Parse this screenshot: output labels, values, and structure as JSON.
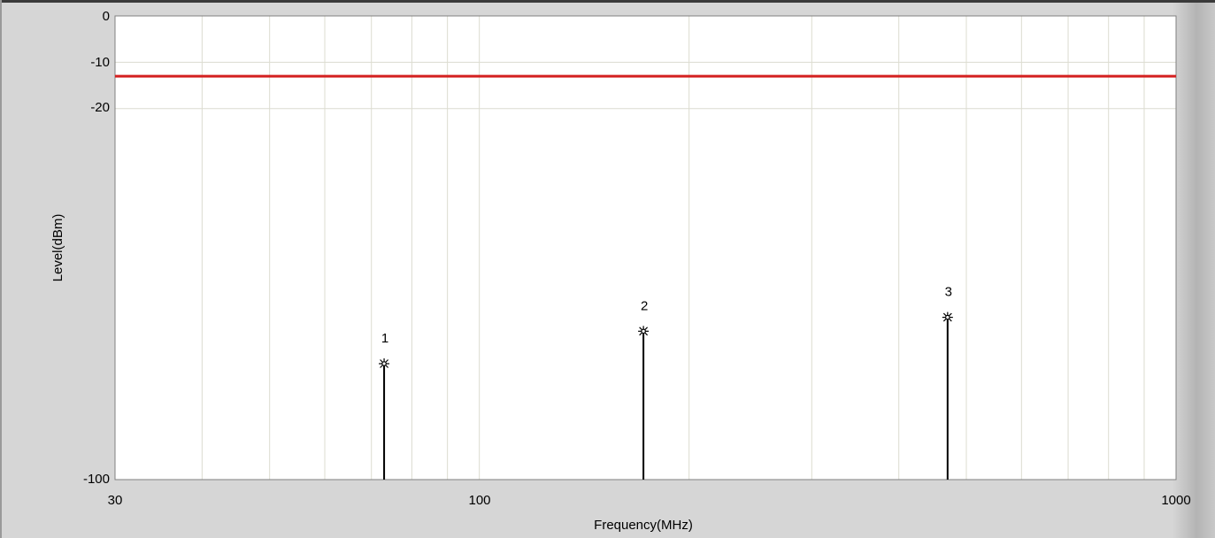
{
  "chart_data": {
    "type": "line",
    "xlabel": "Frequency(MHz)",
    "ylabel": "Level(dBm)",
    "xscale": "log",
    "xlim": [
      30,
      1000
    ],
    "ylim": [
      -100,
      0
    ],
    "x_ticks": [
      "30",
      "100",
      "1000"
    ],
    "y_ticks": [
      "0",
      "-10",
      "-20",
      "-100"
    ],
    "grid": true,
    "limit_line": {
      "level": -13,
      "color": "#d42020"
    },
    "markers": [
      {
        "label": "1",
        "x": 73,
        "y": -75
      },
      {
        "label": "2",
        "x": 172,
        "y": -68
      },
      {
        "label": "3",
        "x": 470,
        "y": -65
      }
    ],
    "colors": {
      "plot_background": "#ffffff",
      "gridline": "#dcdcd0",
      "frame": "#d6d6d6",
      "marker": "#000000"
    }
  }
}
